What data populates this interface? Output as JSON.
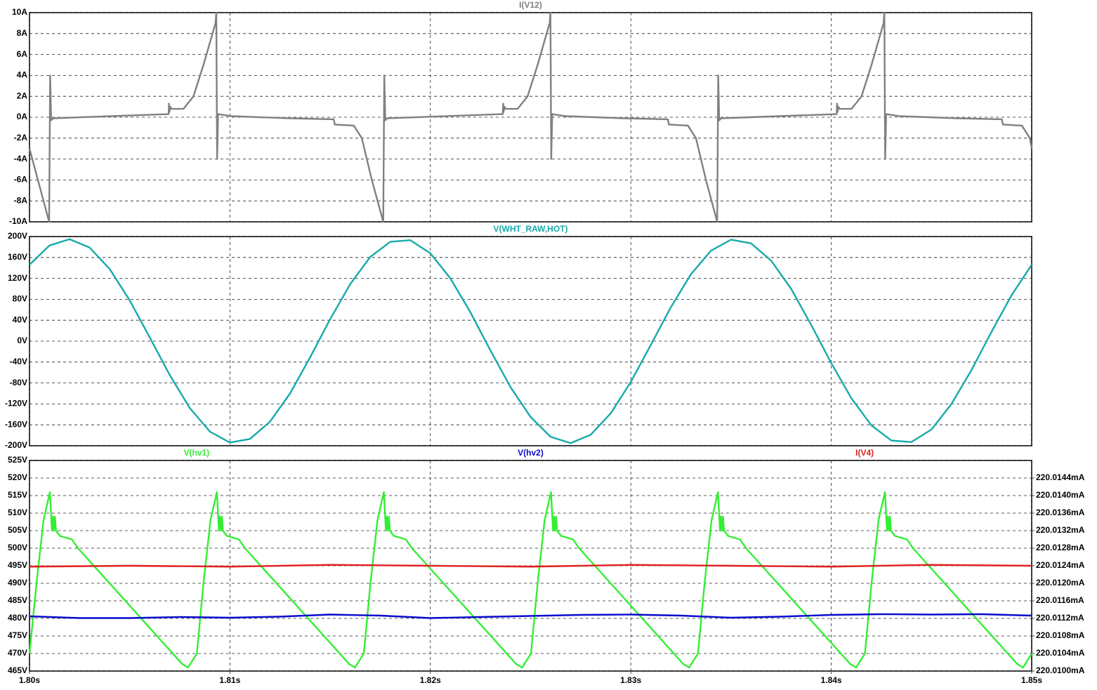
{
  "chart_data": [
    {
      "type": "line",
      "xlim": [
        1.8,
        1.85
      ],
      "ylim": [
        -10,
        10
      ],
      "yticks": [
        {
          "value": 10,
          "label": "10A"
        },
        {
          "value": 8,
          "label": "8A"
        },
        {
          "value": 6,
          "label": "6A"
        },
        {
          "value": 4,
          "label": "4A"
        },
        {
          "value": 2,
          "label": "2A"
        },
        {
          "value": 0,
          "label": "0A"
        },
        {
          "value": -2,
          "label": "-2A"
        },
        {
          "value": -4,
          "label": "-4A"
        },
        {
          "value": -6,
          "label": "-6A"
        },
        {
          "value": -8,
          "label": "-8A"
        },
        {
          "value": -10,
          "label": "-10A"
        }
      ],
      "grid": true,
      "series": [
        {
          "name": "I(V12)",
          "color": "#808080",
          "x": [
            1.8,
            1.80098,
            1.80103,
            1.80108,
            1.80118,
            1.80694,
            1.80696,
            1.80698,
            1.80703,
            1.80708,
            1.80768,
            1.80818,
            1.80868,
            1.80928,
            1.80932,
            1.80936,
            1.80941,
            1.81008,
            1.81298,
            1.81518,
            1.81523,
            1.81618,
            1.81658,
            1.81708,
            1.81765,
            1.8177,
            1.81775,
            1.81785,
            1.82361,
            1.82363,
            1.82365,
            1.8237,
            1.82375,
            1.82435,
            1.82485,
            1.82535,
            1.82595,
            1.82599,
            1.82603,
            1.82608,
            1.82675,
            1.82965,
            1.83185,
            1.8319,
            1.83285,
            1.83325,
            1.83375,
            1.83431,
            1.83436,
            1.83441,
            1.83451,
            1.84027,
            1.84029,
            1.84031,
            1.84036,
            1.84041,
            1.84101,
            1.84151,
            1.84201,
            1.84261,
            1.84265,
            1.84269,
            1.84274,
            1.84341,
            1.84631,
            1.84851,
            1.84856,
            1.84951,
            1.84991,
            1.85
          ],
          "values": [
            -3,
            -10,
            4,
            -0.3,
            -0.1,
            0.3,
            1.3,
            0.5,
            1,
            0.8,
            0.8,
            2,
            5,
            9,
            10,
            -4,
            0.3,
            0.1,
            -0.1,
            -0.2,
            -0.7,
            -0.8,
            -2,
            -6,
            -10,
            4,
            -0.3,
            -0.1,
            0.3,
            1.3,
            0.5,
            1,
            0.8,
            0.8,
            2,
            5,
            9,
            10,
            -4,
            0.3,
            0.1,
            -0.1,
            -0.2,
            -0.7,
            -0.8,
            -2,
            -6,
            -10,
            4,
            -0.3,
            -0.1,
            0.3,
            1.3,
            0.5,
            1,
            0.8,
            0.8,
            2,
            5,
            9,
            10,
            -4,
            0.3,
            0.1,
            -0.1,
            -0.2,
            -0.7,
            -0.8,
            -2,
            -3
          ]
        }
      ]
    },
    {
      "type": "line",
      "xlim": [
        1.8,
        1.85
      ],
      "ylim": [
        -200,
        200
      ],
      "yticks": [
        {
          "value": 200,
          "label": "200V"
        },
        {
          "value": 160,
          "label": "160V"
        },
        {
          "value": 120,
          "label": "120V"
        },
        {
          "value": 80,
          "label": "80V"
        },
        {
          "value": 40,
          "label": "40V"
        },
        {
          "value": 0,
          "label": "0V"
        },
        {
          "value": -40,
          "label": "-40V"
        },
        {
          "value": -80,
          "label": "-80V"
        },
        {
          "value": -120,
          "label": "-120V"
        },
        {
          "value": -160,
          "label": "-160V"
        },
        {
          "value": -200,
          "label": "-200V"
        }
      ],
      "grid": true,
      "series": [
        {
          "name": "V(WHT_RAW,HOT)",
          "color": "#17a9a9",
          "x": [
            1.8,
            1.801,
            1.802,
            1.803,
            1.804,
            1.805,
            1.806,
            1.807,
            1.808,
            1.809,
            1.81,
            1.811,
            1.812,
            1.813,
            1.814,
            1.815,
            1.816,
            1.817,
            1.818,
            1.819,
            1.82,
            1.821,
            1.822,
            1.823,
            1.824,
            1.825,
            1.826,
            1.827,
            1.828,
            1.829,
            1.83,
            1.831,
            1.832,
            1.833,
            1.834,
            1.835,
            1.836,
            1.837,
            1.838,
            1.839,
            1.84,
            1.841,
            1.842,
            1.843,
            1.844,
            1.845,
            1.846,
            1.847,
            1.848,
            1.849,
            1.85
          ],
          "values": [
            146,
            183,
            195,
            179,
            138,
            78,
            7,
            -65,
            -128,
            -173,
            -194,
            -187,
            -154,
            -100,
            -31,
            42,
            109,
            161,
            190,
            193,
            168,
            120,
            55,
            -18,
            -88,
            -145,
            -183,
            -195,
            -179,
            -138,
            -78,
            -7,
            65,
            128,
            173,
            194,
            187,
            154,
            100,
            31,
            -42,
            -109,
            -161,
            -190,
            -193,
            -169,
            -120,
            -55,
            18,
            88,
            146
          ]
        }
      ]
    },
    {
      "type": "line",
      "xlim": [
        1.8,
        1.85
      ],
      "ylim": [
        465,
        525
      ],
      "y2lim": [
        220.01,
        220.0148
      ],
      "xticks": [
        {
          "value": 1.8,
          "label": "1.80s"
        },
        {
          "value": 1.81,
          "label": "1.81s"
        },
        {
          "value": 1.82,
          "label": "1.82s"
        },
        {
          "value": 1.83,
          "label": "1.83s"
        },
        {
          "value": 1.84,
          "label": "1.84s"
        },
        {
          "value": 1.85,
          "label": "1.85s"
        }
      ],
      "yticks": [
        {
          "value": 525,
          "label": "525V"
        },
        {
          "value": 520,
          "label": "520V"
        },
        {
          "value": 515,
          "label": "515V"
        },
        {
          "value": 510,
          "label": "510V"
        },
        {
          "value": 505,
          "label": "505V"
        },
        {
          "value": 500,
          "label": "500V"
        },
        {
          "value": 495,
          "label": "495V"
        },
        {
          "value": 490,
          "label": "490V"
        },
        {
          "value": 485,
          "label": "485V"
        },
        {
          "value": 480,
          "label": "480V"
        },
        {
          "value": 475,
          "label": "475V"
        },
        {
          "value": 470,
          "label": "470V"
        },
        {
          "value": 465,
          "label": "465V"
        }
      ],
      "y2ticks": [
        {
          "value": 220.0144,
          "label": "220.0144mA"
        },
        {
          "value": 220.014,
          "label": "220.0140mA"
        },
        {
          "value": 220.0136,
          "label": "220.0136mA"
        },
        {
          "value": 220.0132,
          "label": "220.0132mA"
        },
        {
          "value": 220.0128,
          "label": "220.0128mA"
        },
        {
          "value": 220.0124,
          "label": "220.0124mA"
        },
        {
          "value": 220.012,
          "label": "220.0120mA"
        },
        {
          "value": 220.0116,
          "label": "220.0116mA"
        },
        {
          "value": 220.0112,
          "label": "220.0112mA"
        },
        {
          "value": 220.0108,
          "label": "220.0108mA"
        },
        {
          "value": 220.0104,
          "label": "220.0104mA"
        },
        {
          "value": 220.01,
          "label": "220.0100mA"
        }
      ],
      "grid": true,
      "series": [
        {
          "name": "V(hv1)",
          "color": "#33ee33",
          "x": [
            1.8,
            1.80035,
            1.8007,
            1.80102,
            1.80112,
            1.80117,
            1.80122,
            1.80127,
            1.80132,
            1.80152,
            1.80182,
            1.80212,
            1.80242,
            1.80762,
            1.80791,
            1.80835,
            1.80868,
            1.80903,
            1.80935,
            1.80945,
            1.8095,
            1.80955,
            1.8096,
            1.80965,
            1.80985,
            1.81015,
            1.81045,
            1.81075,
            1.81595,
            1.81624,
            1.81668,
            1.81701,
            1.81736,
            1.81768,
            1.81778,
            1.81783,
            1.81788,
            1.81793,
            1.81798,
            1.81818,
            1.81848,
            1.81878,
            1.81908,
            1.82428,
            1.82458,
            1.82502,
            1.82535,
            1.8257,
            1.82602,
            1.82612,
            1.82617,
            1.82622,
            1.82627,
            1.82632,
            1.82652,
            1.82682,
            1.82712,
            1.82742,
            1.83262,
            1.83291,
            1.83335,
            1.83368,
            1.83403,
            1.83435,
            1.83445,
            1.8345,
            1.83455,
            1.8346,
            1.83465,
            1.83485,
            1.83515,
            1.83545,
            1.83575,
            1.84095,
            1.84124,
            1.84168,
            1.84201,
            1.84236,
            1.84268,
            1.84278,
            1.84283,
            1.84288,
            1.84293,
            1.84298,
            1.84318,
            1.84348,
            1.84378,
            1.84408,
            1.84928,
            1.84957,
            1.85
          ],
          "values": [
            470,
            490,
            508,
            516,
            505,
            509,
            505,
            509,
            505,
            503.5,
            503,
            502.5,
            500,
            467,
            466,
            470,
            490,
            508,
            516,
            505,
            509,
            505,
            509,
            505,
            503.5,
            503,
            502.5,
            500,
            467,
            466,
            470,
            490,
            508,
            516,
            505,
            509,
            505,
            509,
            505,
            503.5,
            503,
            502.5,
            500,
            467,
            466,
            470,
            490,
            508,
            516,
            505,
            509,
            505,
            509,
            505,
            503.5,
            503,
            502.5,
            500,
            467,
            466,
            470,
            490,
            508,
            516,
            505,
            509,
            505,
            509,
            505,
            503.5,
            503,
            502.5,
            500,
            467,
            466,
            470,
            490,
            508,
            516,
            505,
            509,
            505,
            509,
            505,
            503.5,
            503,
            502.5,
            500,
            467,
            466,
            470
          ]
        },
        {
          "name": "V(hv2)",
          "color": "#0a0acc",
          "x": [
            1.8,
            1.8025,
            1.805,
            1.8075,
            1.81,
            1.8125,
            1.815,
            1.8175,
            1.82,
            1.8225,
            1.825,
            1.8275,
            1.83,
            1.8325,
            1.835,
            1.8375,
            1.84,
            1.8425,
            1.845,
            1.8475,
            1.85
          ],
          "values": [
            480.6,
            480.1,
            480.1,
            480.4,
            480.2,
            480.5,
            481.1,
            480.8,
            480.1,
            480.4,
            480.7,
            481,
            481.1,
            480.8,
            480.2,
            480.5,
            481,
            481.2,
            481.1,
            481.2,
            480.8
          ]
        },
        {
          "name": "I(V4)",
          "color": "#e02020",
          "axis": "y2",
          "x": [
            1.8,
            1.805,
            1.81,
            1.815,
            1.82,
            1.825,
            1.83,
            1.835,
            1.84,
            1.845,
            1.85
          ],
          "values": [
            220.01238,
            220.0124,
            220.01238,
            220.01242,
            220.0124,
            220.01238,
            220.01242,
            220.0124,
            220.01238,
            220.01242,
            220.0124
          ]
        }
      ]
    }
  ]
}
